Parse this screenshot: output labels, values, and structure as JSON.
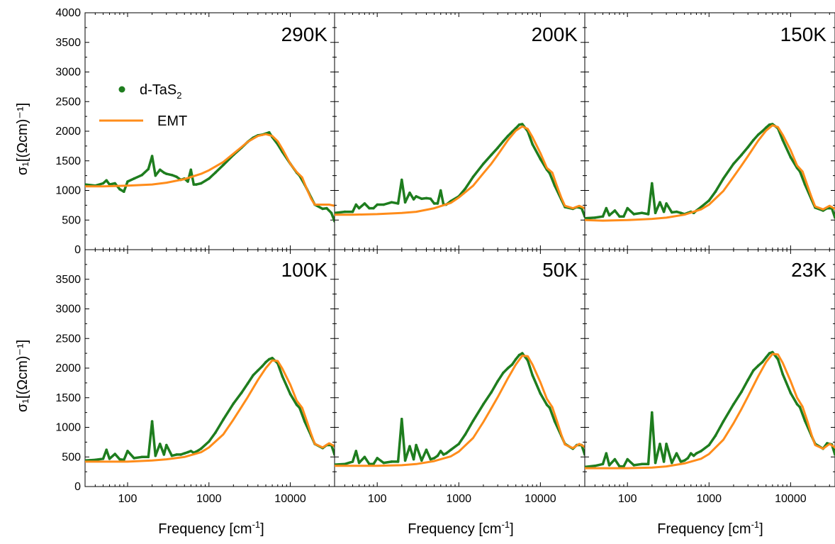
{
  "figure": {
    "y_label": "σ₁[(Ωcm)⁻¹]",
    "x_label_main": "Frequency [cm",
    "x_label_sup": "-1",
    "x_label_end": "]"
  },
  "legend": {
    "data_label": "d-TaS",
    "data_sub": "2",
    "model_label": "EMT"
  },
  "colors": {
    "data": "#1e7d1e",
    "model": "#ff8c1a"
  },
  "axes": {
    "x_scale": "log",
    "x_range": [
      30,
      35000
    ],
    "x_ticks": [
      100,
      1000,
      10000
    ],
    "x_tick_labels": [
      "100",
      "1000",
      "10000"
    ],
    "y_range": [
      0,
      4000
    ],
    "y_ticks_top": [
      0,
      500,
      1000,
      1500,
      2000,
      2500,
      3000,
      3500,
      4000
    ],
    "y_tick_labels_top": [
      "0",
      "500",
      "1000",
      "1500",
      "2000",
      "2500",
      "3000",
      "3500",
      "4000"
    ],
    "y_ticks_bottom": [
      0,
      500,
      1000,
      1500,
      2000,
      2500,
      3000,
      3500
    ],
    "y_tick_labels_bottom": [
      "0",
      "500",
      "1000",
      "1500",
      "2000",
      "2500",
      "3000",
      "3500"
    ]
  },
  "chart_data": [
    {
      "type": "line",
      "panel_label": "290K",
      "series": [
        {
          "name": "d-TaS2",
          "x": [
            30,
            40,
            50,
            55,
            60,
            70,
            80,
            90,
            100,
            120,
            150,
            180,
            200,
            220,
            250,
            280,
            300,
            350,
            400,
            450,
            500,
            550,
            600,
            650,
            700,
            800,
            1000,
            1200,
            1500,
            2000,
            2500,
            3000,
            3500,
            4000,
            4500,
            5000,
            5500,
            6000,
            7000,
            8000,
            10000,
            12000,
            13000,
            15000,
            18000,
            20000,
            25000,
            28000,
            32000,
            35000
          ],
          "y": [
            1100,
            1080,
            1120,
            1170,
            1100,
            1120,
            1020,
            980,
            1150,
            1200,
            1260,
            1360,
            1580,
            1250,
            1350,
            1300,
            1280,
            1260,
            1230,
            1180,
            1200,
            1150,
            1350,
            1100,
            1100,
            1120,
            1200,
            1300,
            1430,
            1600,
            1720,
            1820,
            1890,
            1930,
            1940,
            1960,
            1980,
            1900,
            1780,
            1650,
            1450,
            1300,
            1250,
            1100,
            880,
            760,
            690,
            700,
            620,
            480
          ]
        },
        {
          "name": "EMT",
          "x": [
            30,
            50,
            100,
            200,
            300,
            500,
            800,
            1000,
            1500,
            2000,
            2500,
            3000,
            4000,
            5000,
            6000,
            7000,
            8000,
            10000,
            12000,
            14000,
            16000,
            18000,
            20000,
            25000,
            30000,
            35000
          ],
          "y": [
            1070,
            1070,
            1080,
            1100,
            1130,
            1190,
            1280,
            1340,
            1480,
            1620,
            1730,
            1820,
            1920,
            1950,
            1920,
            1830,
            1700,
            1450,
            1310,
            1220,
            1020,
            860,
            760,
            760,
            760,
            740
          ]
        }
      ]
    },
    {
      "type": "line",
      "panel_label": "200K",
      "series": [
        {
          "name": "d-TaS2",
          "x": [
            30,
            40,
            50,
            55,
            60,
            70,
            80,
            90,
            100,
            120,
            150,
            180,
            200,
            220,
            250,
            280,
            300,
            350,
            400,
            450,
            500,
            550,
            600,
            650,
            700,
            800,
            1000,
            1200,
            1500,
            2000,
            2500,
            3000,
            3500,
            4000,
            4500,
            5000,
            5500,
            6000,
            7000,
            8000,
            10000,
            12000,
            13000,
            15000,
            18000,
            20000,
            25000,
            28000,
            32000,
            35000
          ],
          "y": [
            620,
            640,
            640,
            760,
            700,
            780,
            700,
            700,
            760,
            760,
            800,
            780,
            1180,
            800,
            960,
            850,
            900,
            860,
            870,
            860,
            780,
            780,
            1000,
            760,
            760,
            820,
            900,
            1030,
            1230,
            1450,
            1600,
            1720,
            1830,
            1920,
            1990,
            2050,
            2110,
            2120,
            2000,
            1780,
            1530,
            1350,
            1290,
            1080,
            850,
            720,
            690,
            720,
            700,
            560
          ]
        },
        {
          "name": "EMT",
          "x": [
            30,
            50,
            100,
            200,
            300,
            500,
            800,
            1000,
            1500,
            2000,
            2500,
            3000,
            4000,
            5000,
            6000,
            7000,
            8000,
            10000,
            12000,
            14000,
            16000,
            18000,
            20000,
            25000,
            30000,
            35000
          ],
          "y": [
            590,
            590,
            600,
            620,
            640,
            700,
            790,
            880,
            1080,
            1290,
            1450,
            1600,
            1850,
            2010,
            2080,
            2040,
            1900,
            1630,
            1380,
            1300,
            1070,
            880,
            740,
            700,
            740,
            700
          ]
        }
      ]
    },
    {
      "type": "line",
      "panel_label": "150K",
      "series": [
        {
          "name": "d-TaS2",
          "x": [
            30,
            40,
            50,
            55,
            60,
            70,
            80,
            90,
            100,
            120,
            150,
            180,
            200,
            220,
            250,
            280,
            300,
            350,
            400,
            450,
            500,
            550,
            600,
            650,
            700,
            800,
            1000,
            1200,
            1500,
            2000,
            2500,
            3000,
            3500,
            4000,
            4500,
            5000,
            5500,
            6000,
            7000,
            8000,
            10000,
            12000,
            13000,
            15000,
            18000,
            20000,
            25000,
            28000,
            32000,
            35000
          ],
          "y": [
            530,
            540,
            560,
            700,
            580,
            660,
            560,
            560,
            700,
            600,
            620,
            600,
            1120,
            620,
            800,
            640,
            780,
            630,
            640,
            620,
            600,
            620,
            640,
            620,
            660,
            720,
            830,
            980,
            1200,
            1450,
            1600,
            1730,
            1850,
            1940,
            2000,
            2060,
            2110,
            2120,
            2050,
            1850,
            1560,
            1380,
            1320,
            1100,
            850,
            710,
            660,
            700,
            700,
            540
          ]
        },
        {
          "name": "EMT",
          "x": [
            30,
            50,
            100,
            200,
            300,
            500,
            800,
            1000,
            1500,
            2000,
            2500,
            3000,
            4000,
            5000,
            6000,
            7000,
            8000,
            10000,
            12000,
            14000,
            16000,
            18000,
            20000,
            25000,
            30000,
            35000
          ],
          "y": [
            500,
            490,
            500,
            520,
            540,
            590,
            680,
            760,
            990,
            1230,
            1420,
            1580,
            1840,
            2010,
            2100,
            2070,
            1940,
            1680,
            1420,
            1320,
            1090,
            890,
            730,
            680,
            740,
            690
          ]
        }
      ]
    },
    {
      "type": "line",
      "panel_label": "100K",
      "series": [
        {
          "name": "d-TaS2",
          "x": [
            30,
            40,
            50,
            55,
            60,
            70,
            80,
            90,
            100,
            120,
            150,
            180,
            200,
            220,
            250,
            280,
            300,
            350,
            400,
            450,
            500,
            550,
            600,
            650,
            700,
            800,
            1000,
            1200,
            1500,
            2000,
            2500,
            3000,
            3500,
            4000,
            4500,
            5000,
            5500,
            6000,
            7000,
            8000,
            10000,
            12000,
            13000,
            15000,
            18000,
            20000,
            25000,
            28000,
            32000,
            35000
          ],
          "y": [
            440,
            450,
            470,
            620,
            470,
            550,
            460,
            450,
            600,
            480,
            500,
            500,
            1100,
            520,
            720,
            540,
            700,
            520,
            540,
            540,
            560,
            580,
            600,
            570,
            590,
            640,
            760,
            910,
            1130,
            1400,
            1580,
            1740,
            1880,
            1960,
            2030,
            2100,
            2150,
            2170,
            2080,
            1860,
            1560,
            1380,
            1330,
            1100,
            860,
            720,
            650,
            700,
            700,
            540
          ]
        },
        {
          "name": "EMT",
          "x": [
            30,
            50,
            100,
            200,
            300,
            500,
            800,
            1000,
            1500,
            2000,
            2500,
            3000,
            4000,
            5000,
            6000,
            7000,
            8000,
            10000,
            12000,
            14000,
            16000,
            18000,
            20000,
            25000,
            30000,
            35000
          ],
          "y": [
            420,
            420,
            420,
            440,
            460,
            500,
            580,
            660,
            880,
            1130,
            1340,
            1510,
            1800,
            2000,
            2130,
            2120,
            1990,
            1720,
            1450,
            1330,
            1100,
            890,
            720,
            660,
            730,
            680
          ]
        }
      ]
    },
    {
      "type": "line",
      "panel_label": "50K",
      "series": [
        {
          "name": "d-TaS2",
          "x": [
            30,
            40,
            50,
            55,
            60,
            70,
            80,
            90,
            100,
            120,
            150,
            180,
            200,
            220,
            250,
            280,
            300,
            350,
            400,
            450,
            500,
            550,
            600,
            650,
            700,
            800,
            1000,
            1200,
            1500,
            2000,
            2500,
            3000,
            3500,
            4000,
            4500,
            5000,
            5500,
            6000,
            7000,
            8000,
            10000,
            12000,
            13000,
            15000,
            18000,
            20000,
            25000,
            28000,
            32000,
            35000
          ],
          "y": [
            370,
            380,
            420,
            600,
            400,
            500,
            380,
            380,
            480,
            400,
            420,
            420,
            1140,
            440,
            680,
            460,
            700,
            440,
            620,
            460,
            480,
            520,
            600,
            540,
            560,
            620,
            720,
            880,
            1110,
            1390,
            1590,
            1780,
            1920,
            2000,
            2060,
            2150,
            2220,
            2250,
            2130,
            1880,
            1570,
            1380,
            1330,
            1100,
            860,
            720,
            640,
            700,
            700,
            540
          ]
        },
        {
          "name": "EMT",
          "x": [
            30,
            50,
            100,
            200,
            300,
            500,
            800,
            1000,
            1500,
            2000,
            2500,
            3000,
            4000,
            5000,
            6000,
            7000,
            8000,
            10000,
            12000,
            14000,
            16000,
            18000,
            20000,
            25000,
            30000,
            35000
          ],
          "y": [
            350,
            350,
            350,
            360,
            380,
            430,
            510,
            590,
            820,
            1090,
            1320,
            1510,
            1830,
            2060,
            2210,
            2200,
            2060,
            1760,
            1480,
            1340,
            1100,
            880,
            710,
            650,
            720,
            670
          ]
        }
      ]
    },
    {
      "type": "line",
      "panel_label": "23K",
      "series": [
        {
          "name": "d-TaS2",
          "x": [
            30,
            40,
            50,
            55,
            60,
            70,
            80,
            90,
            100,
            120,
            150,
            180,
            200,
            220,
            250,
            280,
            300,
            350,
            400,
            450,
            500,
            550,
            600,
            650,
            700,
            800,
            1000,
            1200,
            1500,
            2000,
            2500,
            3000,
            3500,
            4000,
            4500,
            5000,
            5500,
            6000,
            7000,
            8000,
            10000,
            12000,
            13000,
            15000,
            18000,
            20000,
            25000,
            28000,
            32000,
            35000
          ],
          "y": [
            330,
            350,
            380,
            560,
            360,
            460,
            340,
            340,
            460,
            360,
            380,
            380,
            1250,
            400,
            720,
            420,
            720,
            400,
            560,
            420,
            440,
            480,
            560,
            520,
            560,
            600,
            700,
            860,
            1100,
            1390,
            1600,
            1800,
            1960,
            2040,
            2100,
            2180,
            2250,
            2270,
            2150,
            1900,
            1580,
            1390,
            1340,
            1110,
            860,
            720,
            640,
            730,
            710,
            540
          ]
        },
        {
          "name": "EMT",
          "x": [
            30,
            50,
            100,
            200,
            300,
            500,
            800,
            1000,
            1500,
            2000,
            2500,
            3000,
            4000,
            5000,
            6000,
            7000,
            8000,
            10000,
            12000,
            14000,
            16000,
            18000,
            20000,
            25000,
            30000,
            35000
          ],
          "y": [
            310,
            310,
            310,
            320,
            340,
            390,
            470,
            550,
            790,
            1070,
            1310,
            1520,
            1860,
            2100,
            2240,
            2230,
            2090,
            1780,
            1500,
            1350,
            1110,
            880,
            700,
            640,
            720,
            660
          ]
        }
      ]
    }
  ]
}
